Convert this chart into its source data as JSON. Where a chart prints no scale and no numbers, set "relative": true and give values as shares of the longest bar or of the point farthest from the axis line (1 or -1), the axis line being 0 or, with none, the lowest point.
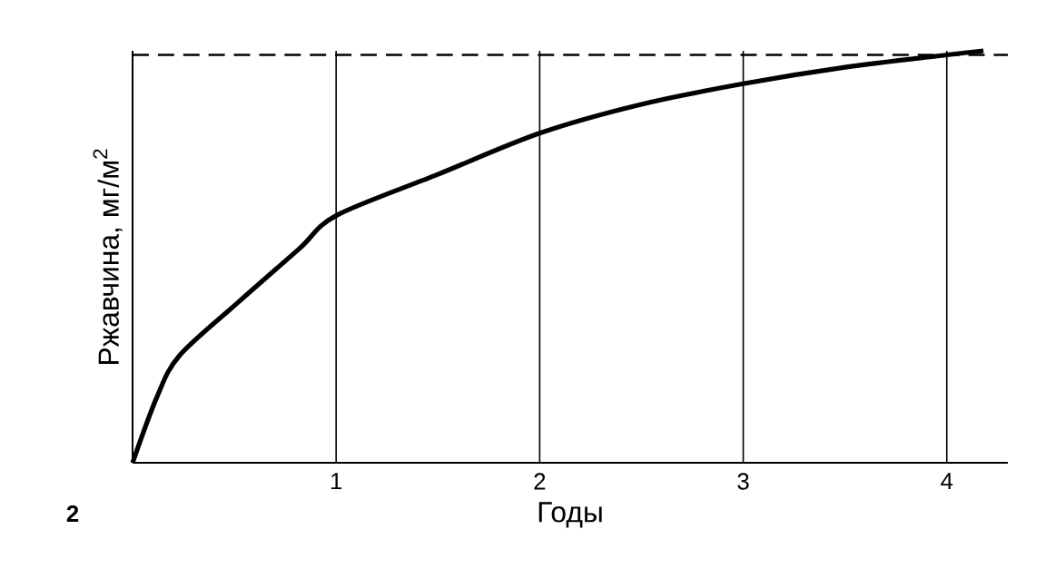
{
  "chart_data": {
    "type": "line",
    "relative": true,
    "xlabel": "Годы",
    "ylabel": "Ржавчина, мг/м$^{2}$",
    "x": [
      0,
      0.12,
      0.23,
      0.52,
      0.82,
      1,
      1.5,
      2,
      2.5,
      3,
      3.5,
      4,
      4.18
    ],
    "series": [
      {
        "color": "#000000",
        "values": [
          0,
          0.16,
          0.26,
          0.39,
          0.52,
          0.6,
          0.7,
          0.8,
          0.87,
          0.92,
          0.96,
          0.99,
          1
        ]
      }
    ],
    "xlim": [
      0,
      4.3
    ],
    "xticks": [
      1,
      2,
      3,
      4
    ],
    "grid": "x",
    "marker": "none",
    "line_style": "solid",
    "ref_lines": [
      {
        "axis": "y",
        "value": 0.99,
        "line_style": "dashed",
        "color": "#000000"
      }
    ],
    "annotations": [
      "2"
    ]
  }
}
